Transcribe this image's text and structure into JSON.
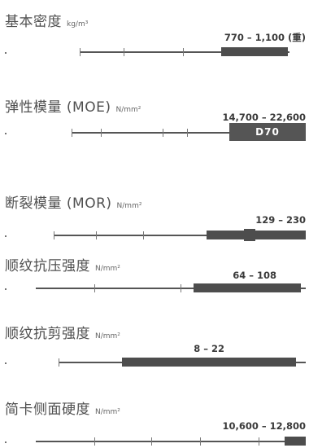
{
  "properties": [
    {
      "id": "density",
      "title": "基本密度",
      "unit": "kg/m³",
      "range_label": "770 – 1,100 (重)",
      "grade": null
    },
    {
      "id": "moe",
      "title": "弹性模量 (MOE)",
      "unit": "N/mm²",
      "range_label": "14,700 – 22,600",
      "grade": "D70"
    },
    {
      "id": "mor",
      "title": "断裂模量 (MOR)",
      "unit": "N/mm²",
      "range_label": "129 – 230",
      "grade": null
    },
    {
      "id": "compression",
      "title": "顺纹抗压强度",
      "unit": "N/mm²",
      "range_label": "64 – 108",
      "grade": null
    },
    {
      "id": "shear",
      "title": "顺纹抗剪强度",
      "unit": "N/mm²",
      "range_label": "8 – 22",
      "grade": null
    },
    {
      "id": "hardness",
      "title": "简卡侧面硬度",
      "unit": "N/mm²",
      "range_label": "10,600 – 12,800",
      "grade": null
    }
  ]
}
